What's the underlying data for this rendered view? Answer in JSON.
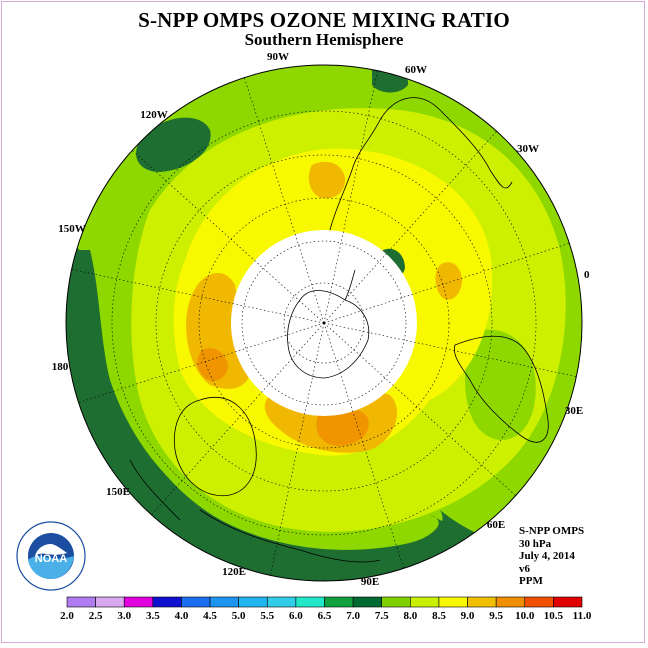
{
  "title": "S-NPP OMPS OZONE MIXING RATIO",
  "subtitle": "Southern Hemisphere",
  "longitude_labels": [
    "90W",
    "60W",
    "30W",
    "0",
    "30E",
    "60E",
    "90E",
    "120E",
    "150E",
    "180",
    "150W",
    "120W"
  ],
  "info": {
    "line1": "S-NPP OMPS",
    "line2": "30 hPa",
    "line3": "July 4, 2014",
    "line4": "v6",
    "line5": "PPM"
  },
  "logo_text": "NOAA",
  "colorbar": {
    "ticks": [
      "2.0",
      "2.5",
      "3.0",
      "3.5",
      "4.0",
      "4.5",
      "5.0",
      "5.5",
      "6.0",
      "6.5",
      "7.0",
      "7.5",
      "8.0",
      "8.5",
      "9.0",
      "9.5",
      "10.0",
      "10.5",
      "11.0"
    ],
    "colors": [
      "#b07cf0",
      "#d8a8f0",
      "#e000e0",
      "#1010d0",
      "#1a6ef0",
      "#1e96f0",
      "#20b4f0",
      "#30cce8",
      "#20e8c8",
      "#10a040",
      "#006a30",
      "#80d000",
      "#c8f000",
      "#f8f800",
      "#f0c000",
      "#f09000",
      "#f05000",
      "#e00000",
      "#806040"
    ]
  },
  "colors": {
    "dark_green": "#1e6e32",
    "green": "#8ed800",
    "yellow_green": "#ccf000",
    "yellow": "#f8f800",
    "orange": "#f0b800",
    "dark_orange": "#f09400",
    "frame": "#d8a8d8"
  }
}
